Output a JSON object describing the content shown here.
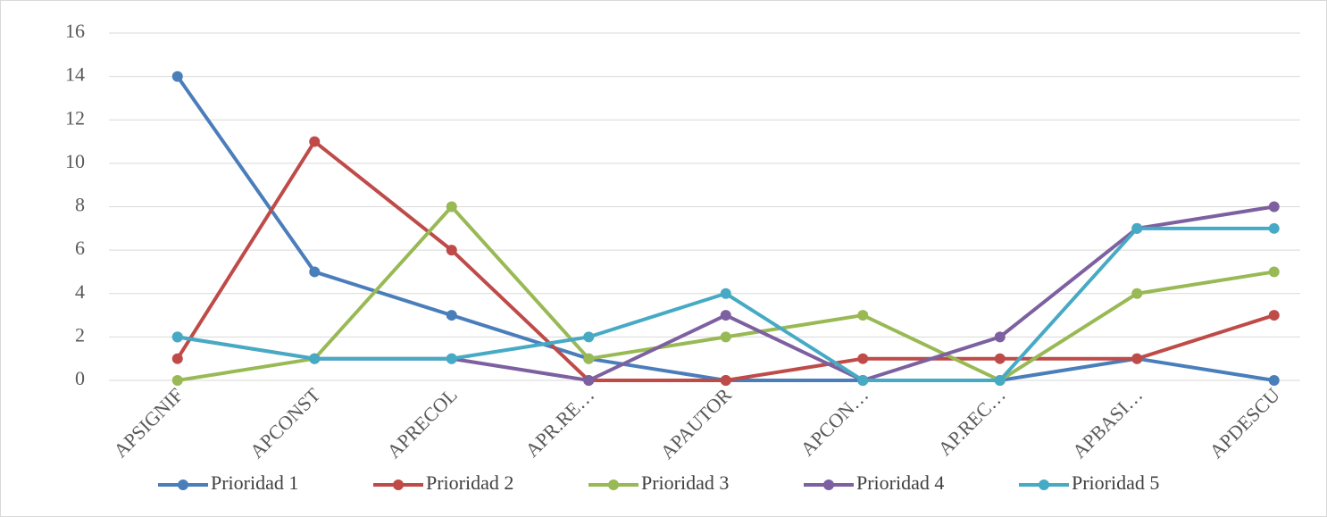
{
  "chart_data": {
    "type": "line",
    "categories": [
      "APSIGNIF",
      "APCONST",
      "APRECOL",
      "APR.RE…",
      "APAUTOR",
      "APCON…",
      "AP.REC…",
      "APBASI…",
      "APDESCU"
    ],
    "series": [
      {
        "name": "Prioridad 1",
        "color": "#4a7ebb",
        "values": [
          14,
          5,
          3,
          1,
          0,
          0,
          0,
          1,
          0
        ]
      },
      {
        "name": "Prioridad 2",
        "color": "#be4b48",
        "values": [
          1,
          11,
          6,
          0,
          0,
          1,
          1,
          1,
          3
        ]
      },
      {
        "name": "Prioridad 3",
        "color": "#98b954",
        "values": [
          0,
          1,
          8,
          1,
          2,
          3,
          0,
          4,
          5
        ]
      },
      {
        "name": "Prioridad 4",
        "color": "#7d60a0",
        "values": [
          2,
          1,
          1,
          0,
          3,
          0,
          2,
          7,
          8
        ]
      },
      {
        "name": "Prioridad 5",
        "color": "#46aac5",
        "values": [
          2,
          1,
          1,
          2,
          4,
          0,
          0,
          7,
          7
        ]
      }
    ],
    "ylim": [
      0,
      16
    ],
    "yticks": [
      0,
      2,
      4,
      6,
      8,
      10,
      12,
      14,
      16
    ],
    "grid": true,
    "legend": "bottom"
  }
}
